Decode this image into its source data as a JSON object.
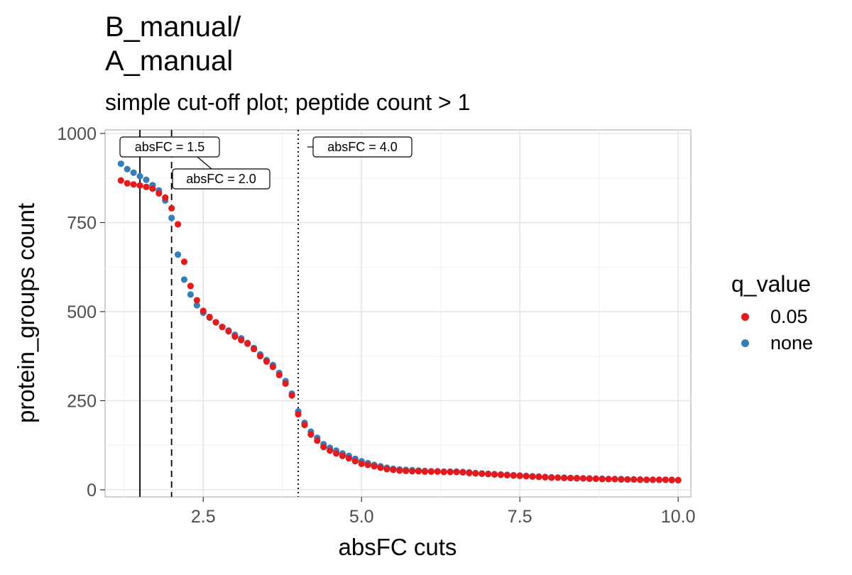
{
  "chart_data": {
    "type": "scatter",
    "title_lines": [
      "B_manual/",
      "A_manual"
    ],
    "subtitle": "simple cut-off plot; peptide count > 1",
    "xlabel": "absFC cuts",
    "ylabel": "protein_groups count",
    "xlim": [
      0.95,
      10.2
    ],
    "ylim": [
      -20,
      1010
    ],
    "x_ticks": [
      2.5,
      5.0,
      7.5,
      10.0
    ],
    "x_tick_labels": [
      "2.5",
      "5.0",
      "7.5",
      "10.0"
    ],
    "y_ticks": [
      0,
      250,
      500,
      750,
      1000
    ],
    "y_tick_labels": [
      "0",
      "250",
      "500",
      "750",
      "1000"
    ],
    "grid": true,
    "legend": {
      "title": "q_value",
      "position": "right"
    },
    "vlines": [
      {
        "x": 1.5,
        "style": "solid",
        "label": "absFC = 1.5"
      },
      {
        "x": 2.0,
        "style": "dashed",
        "label": "absFC = 2.0"
      },
      {
        "x": 4.0,
        "style": "dotted",
        "label": "absFC = 4.0"
      }
    ],
    "x": [
      1.2,
      1.3,
      1.4,
      1.5,
      1.6,
      1.7,
      1.8,
      1.9,
      2.0,
      2.1,
      2.2,
      2.3,
      2.4,
      2.5,
      2.6,
      2.7,
      2.8,
      2.9,
      3.0,
      3.1,
      3.2,
      3.3,
      3.4,
      3.5,
      3.6,
      3.7,
      3.8,
      3.9,
      4.0,
      4.1,
      4.2,
      4.3,
      4.4,
      4.5,
      4.6,
      4.7,
      4.8,
      4.9,
      5.0,
      5.1,
      5.2,
      5.3,
      5.4,
      5.5,
      5.6,
      5.7,
      5.8,
      5.9,
      6.0,
      6.1,
      6.2,
      6.3,
      6.4,
      6.5,
      6.6,
      6.7,
      6.8,
      6.9,
      7.0,
      7.1,
      7.2,
      7.3,
      7.4,
      7.5,
      7.6,
      7.7,
      7.8,
      7.9,
      8.0,
      8.1,
      8.2,
      8.3,
      8.4,
      8.5,
      8.6,
      8.7,
      8.8,
      8.9,
      9.0,
      9.1,
      9.2,
      9.3,
      9.4,
      9.5,
      9.6,
      9.7,
      9.8,
      9.9,
      10.0
    ],
    "series": [
      {
        "name": "none",
        "color": "#377EB8",
        "values": [
          915,
          900,
          890,
          880,
          870,
          855,
          840,
          812,
          763,
          660,
          590,
          548,
          518,
          497,
          483,
          470,
          457,
          447,
          435,
          425,
          412,
          398,
          380,
          364,
          350,
          328,
          305,
          270,
          220,
          188,
          163,
          146,
          128,
          118,
          110,
          102,
          95,
          87,
          80,
          75,
          70,
          66,
          62,
          59,
          57,
          56,
          55,
          54,
          53,
          52,
          52,
          51,
          51,
          51,
          50,
          49,
          47,
          46,
          45,
          44,
          43,
          42,
          41,
          40,
          39,
          38,
          37,
          36,
          35,
          34,
          34,
          33,
          33,
          32,
          32,
          31,
          31,
          30,
          30,
          30,
          29,
          29,
          29,
          28,
          28,
          28,
          28,
          28,
          27
        ]
      },
      {
        "name": "0.05",
        "color": "#E41A1C",
        "values": [
          868,
          860,
          857,
          854,
          850,
          845,
          832,
          820,
          790,
          745,
          640,
          572,
          532,
          502,
          485,
          470,
          457,
          445,
          430,
          420,
          410,
          395,
          375,
          360,
          345,
          322,
          298,
          265,
          212,
          182,
          155,
          138,
          120,
          110,
          102,
          95,
          88,
          80,
          73,
          70,
          66,
          62,
          58,
          56,
          54,
          53,
          52,
          52,
          51,
          51,
          51,
          50,
          50,
          50,
          49,
          47,
          46,
          45,
          44,
          43,
          42,
          41,
          40,
          39,
          38,
          37,
          36,
          35,
          34,
          34,
          33,
          33,
          32,
          32,
          31,
          31,
          30,
          30,
          30,
          29,
          29,
          29,
          28,
          28,
          28,
          28,
          28,
          27,
          27
        ]
      }
    ]
  }
}
